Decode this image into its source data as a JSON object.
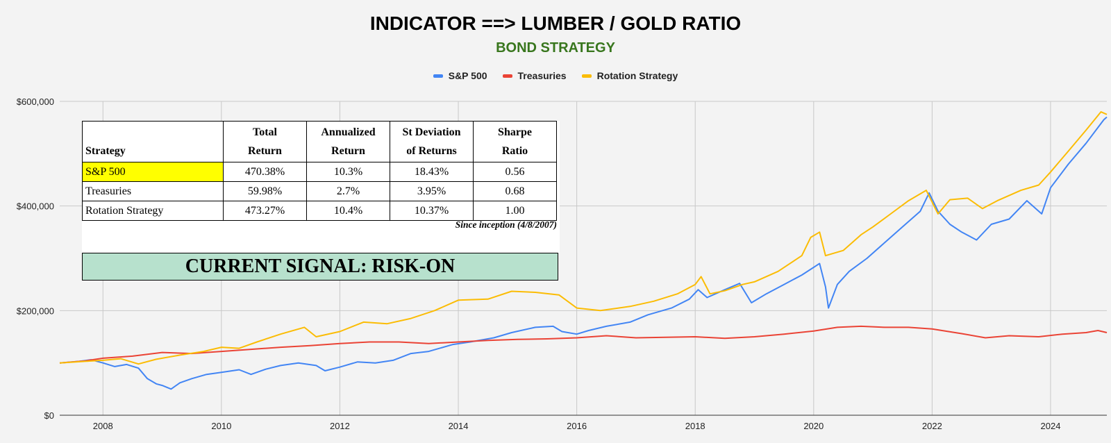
{
  "chart_data": {
    "type": "line",
    "title": "INDICATOR ==> LUMBER / GOLD RATIO",
    "subtitle": "BOND STRATEGY",
    "xlabel": "",
    "ylabel": "",
    "xlim": [
      2007.27,
      2024.95
    ],
    "ylim": [
      0,
      600000
    ],
    "x_ticks": [
      2008,
      2010,
      2012,
      2014,
      2016,
      2018,
      2020,
      2022,
      2024
    ],
    "x_tick_labels": [
      "2008",
      "2010",
      "2012",
      "2014",
      "2016",
      "2018",
      "2020",
      "2022",
      "2024"
    ],
    "y_ticks": [
      0,
      200000,
      400000,
      600000
    ],
    "y_tick_labels": [
      "$0",
      "$200,000",
      "$400,000",
      "$600,000"
    ],
    "grid": true,
    "legend_position": "top-center",
    "series": [
      {
        "name": "S&P 500",
        "color": "#4285f4",
        "points": [
          [
            2007.27,
            100000
          ],
          [
            2007.6,
            103000
          ],
          [
            2007.8,
            106000
          ],
          [
            2008.0,
            100000
          ],
          [
            2008.2,
            93000
          ],
          [
            2008.4,
            97000
          ],
          [
            2008.6,
            90000
          ],
          [
            2008.75,
            70000
          ],
          [
            2008.9,
            60000
          ],
          [
            2009.0,
            57000
          ],
          [
            2009.15,
            50000
          ],
          [
            2009.3,
            62000
          ],
          [
            2009.5,
            70000
          ],
          [
            2009.75,
            78000
          ],
          [
            2010.0,
            82000
          ],
          [
            2010.3,
            87000
          ],
          [
            2010.5,
            78000
          ],
          [
            2010.75,
            88000
          ],
          [
            2011.0,
            95000
          ],
          [
            2011.3,
            100000
          ],
          [
            2011.6,
            95000
          ],
          [
            2011.75,
            85000
          ],
          [
            2012.0,
            92000
          ],
          [
            2012.3,
            102000
          ],
          [
            2012.6,
            100000
          ],
          [
            2012.9,
            105000
          ],
          [
            2013.2,
            118000
          ],
          [
            2013.5,
            122000
          ],
          [
            2013.9,
            135000
          ],
          [
            2014.2,
            140000
          ],
          [
            2014.6,
            148000
          ],
          [
            2014.9,
            158000
          ],
          [
            2015.3,
            168000
          ],
          [
            2015.6,
            170000
          ],
          [
            2015.75,
            160000
          ],
          [
            2016.0,
            155000
          ],
          [
            2016.2,
            162000
          ],
          [
            2016.5,
            170000
          ],
          [
            2016.9,
            178000
          ],
          [
            2017.2,
            192000
          ],
          [
            2017.6,
            205000
          ],
          [
            2017.9,
            222000
          ],
          [
            2018.05,
            240000
          ],
          [
            2018.2,
            225000
          ],
          [
            2018.5,
            240000
          ],
          [
            2018.75,
            252000
          ],
          [
            2018.95,
            215000
          ],
          [
            2019.2,
            232000
          ],
          [
            2019.5,
            250000
          ],
          [
            2019.8,
            268000
          ],
          [
            2020.1,
            290000
          ],
          [
            2020.2,
            245000
          ],
          [
            2020.25,
            205000
          ],
          [
            2020.4,
            250000
          ],
          [
            2020.6,
            275000
          ],
          [
            2020.9,
            300000
          ],
          [
            2021.2,
            330000
          ],
          [
            2021.5,
            360000
          ],
          [
            2021.8,
            390000
          ],
          [
            2021.95,
            425000
          ],
          [
            2022.1,
            390000
          ],
          [
            2022.3,
            365000
          ],
          [
            2022.5,
            350000
          ],
          [
            2022.75,
            335000
          ],
          [
            2023.0,
            365000
          ],
          [
            2023.3,
            375000
          ],
          [
            2023.6,
            410000
          ],
          [
            2023.85,
            385000
          ],
          [
            2024.0,
            435000
          ],
          [
            2024.3,
            480000
          ],
          [
            2024.6,
            520000
          ],
          [
            2024.9,
            565000
          ],
          [
            2024.95,
            570000
          ]
        ]
      },
      {
        "name": "Treasuries",
        "color": "#ea4335",
        "points": [
          [
            2007.27,
            100000
          ],
          [
            2007.7,
            104000
          ],
          [
            2008.0,
            109000
          ],
          [
            2008.5,
            113000
          ],
          [
            2009.0,
            120000
          ],
          [
            2009.5,
            118000
          ],
          [
            2010.0,
            122000
          ],
          [
            2010.5,
            126000
          ],
          [
            2011.0,
            130000
          ],
          [
            2011.5,
            133000
          ],
          [
            2012.0,
            137000
          ],
          [
            2012.5,
            140000
          ],
          [
            2013.0,
            140000
          ],
          [
            2013.5,
            137000
          ],
          [
            2014.0,
            140000
          ],
          [
            2014.5,
            143000
          ],
          [
            2015.0,
            145000
          ],
          [
            2015.5,
            146000
          ],
          [
            2016.0,
            148000
          ],
          [
            2016.5,
            152000
          ],
          [
            2017.0,
            148000
          ],
          [
            2017.5,
            149000
          ],
          [
            2018.0,
            150000
          ],
          [
            2018.5,
            147000
          ],
          [
            2019.0,
            150000
          ],
          [
            2019.5,
            155000
          ],
          [
            2020.0,
            161000
          ],
          [
            2020.4,
            168000
          ],
          [
            2020.8,
            170000
          ],
          [
            2021.2,
            168000
          ],
          [
            2021.6,
            168000
          ],
          [
            2022.0,
            165000
          ],
          [
            2022.5,
            156000
          ],
          [
            2022.9,
            148000
          ],
          [
            2023.3,
            152000
          ],
          [
            2023.8,
            150000
          ],
          [
            2024.2,
            155000
          ],
          [
            2024.6,
            158000
          ],
          [
            2024.8,
            162000
          ],
          [
            2024.95,
            158000
          ]
        ]
      },
      {
        "name": "Rotation Strategy",
        "color": "#fbbc04",
        "points": [
          [
            2007.27,
            100000
          ],
          [
            2007.7,
            103000
          ],
          [
            2008.0,
            105000
          ],
          [
            2008.3,
            108000
          ],
          [
            2008.6,
            98000
          ],
          [
            2008.9,
            107000
          ],
          [
            2009.3,
            115000
          ],
          [
            2009.7,
            122000
          ],
          [
            2010.0,
            130000
          ],
          [
            2010.3,
            128000
          ],
          [
            2010.6,
            140000
          ],
          [
            2011.0,
            155000
          ],
          [
            2011.4,
            168000
          ],
          [
            2011.6,
            150000
          ],
          [
            2012.0,
            160000
          ],
          [
            2012.4,
            178000
          ],
          [
            2012.8,
            175000
          ],
          [
            2013.2,
            185000
          ],
          [
            2013.6,
            200000
          ],
          [
            2014.0,
            220000
          ],
          [
            2014.5,
            222000
          ],
          [
            2014.9,
            237000
          ],
          [
            2015.3,
            235000
          ],
          [
            2015.7,
            230000
          ],
          [
            2016.0,
            205000
          ],
          [
            2016.4,
            200000
          ],
          [
            2016.9,
            208000
          ],
          [
            2017.3,
            218000
          ],
          [
            2017.7,
            232000
          ],
          [
            2018.0,
            250000
          ],
          [
            2018.1,
            265000
          ],
          [
            2018.25,
            232000
          ],
          [
            2018.5,
            238000
          ],
          [
            2018.8,
            250000
          ],
          [
            2019.0,
            255000
          ],
          [
            2019.4,
            275000
          ],
          [
            2019.8,
            305000
          ],
          [
            2019.95,
            340000
          ],
          [
            2020.1,
            350000
          ],
          [
            2020.2,
            305000
          ],
          [
            2020.5,
            315000
          ],
          [
            2020.8,
            345000
          ],
          [
            2021.0,
            360000
          ],
          [
            2021.3,
            385000
          ],
          [
            2021.6,
            410000
          ],
          [
            2021.9,
            430000
          ],
          [
            2022.1,
            385000
          ],
          [
            2022.3,
            412000
          ],
          [
            2022.6,
            415000
          ],
          [
            2022.85,
            395000
          ],
          [
            2023.1,
            410000
          ],
          [
            2023.5,
            430000
          ],
          [
            2023.8,
            440000
          ],
          [
            2024.0,
            465000
          ],
          [
            2024.3,
            505000
          ],
          [
            2024.6,
            545000
          ],
          [
            2024.85,
            580000
          ],
          [
            2024.95,
            575000
          ]
        ]
      }
    ],
    "table": {
      "type": "table",
      "columns": [
        "Strategy",
        "Total Return",
        "Annualized Return",
        "St Deviation of Returns",
        "Sharpe Ratio"
      ],
      "rows": [
        [
          "S&P 500",
          "470.38%",
          "10.3%",
          "18.43%",
          "0.56"
        ],
        [
          "Treasuries",
          "59.98%",
          "2.7%",
          "3.95%",
          "0.68"
        ],
        [
          "Rotation Strategy",
          "473.27%",
          "10.4%",
          "10.37%",
          "1.00"
        ]
      ]
    }
  },
  "header": {
    "title": "INDICATOR ==> LUMBER / GOLD RATIO",
    "subtitle": "BOND STRATEGY"
  },
  "legend": [
    {
      "label": "S&P 500",
      "color": "#4285f4"
    },
    {
      "label": "Treasuries",
      "color": "#ea4335"
    },
    {
      "label": "Rotation Strategy",
      "color": "#fbbc04"
    }
  ],
  "stats_table": {
    "headers": {
      "strategy": "Strategy",
      "total_return": [
        "Total",
        "Return"
      ],
      "annualized_return": [
        "Annualized",
        "Return"
      ],
      "st_deviation": [
        "St Deviation",
        "of Returns"
      ],
      "sharpe": [
        "Sharpe",
        "Ratio"
      ]
    },
    "rows": [
      {
        "name": "S&P 500",
        "total_return": "470.38%",
        "annualized": "10.3%",
        "st_dev": "18.43%",
        "sharpe": "0.56",
        "highlight_color": "#ffff00"
      },
      {
        "name": "Treasuries",
        "total_return": "59.98%",
        "annualized": "2.7%",
        "st_dev": "3.95%",
        "sharpe": "0.68"
      },
      {
        "name": "Rotation Strategy",
        "total_return": "473.27%",
        "annualized": "10.4%",
        "st_dev": "10.37%",
        "sharpe": "1.00"
      }
    ],
    "footnote": "Since inception (4/8/2007)"
  },
  "signal": {
    "text": "CURRENT SIGNAL: RISK-ON",
    "color": "#b7e1cd"
  }
}
